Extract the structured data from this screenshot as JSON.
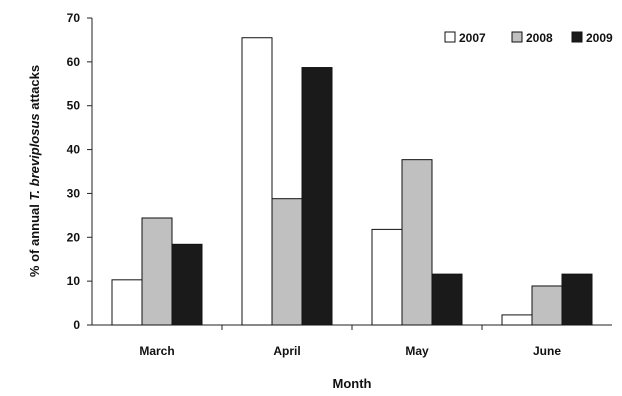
{
  "chart_data": {
    "type": "bar",
    "categories": [
      "March",
      "April",
      "May",
      "June"
    ],
    "series": [
      {
        "name": "2007",
        "color": "#ffffff",
        "values": [
          10.3,
          65.5,
          21.8,
          2.3
        ]
      },
      {
        "name": "2008",
        "color": "#c0c0c0",
        "values": [
          24.4,
          28.8,
          37.7,
          8.9
        ]
      },
      {
        "name": "2009",
        "color": "#1a1a1a",
        "values": [
          18.4,
          58.7,
          11.6,
          11.6
        ]
      }
    ],
    "xlabel": "Month",
    "ylabel_prefix": "% of annual ",
    "ylabel_species": "T. breviplosus",
    "ylabel_suffix": " attacks",
    "ylim": [
      0,
      70
    ],
    "yticks": [
      "0",
      "10",
      "20",
      "30",
      "40",
      "50",
      "60",
      "70"
    ],
    "grid": false,
    "legend_position": "top-right"
  }
}
